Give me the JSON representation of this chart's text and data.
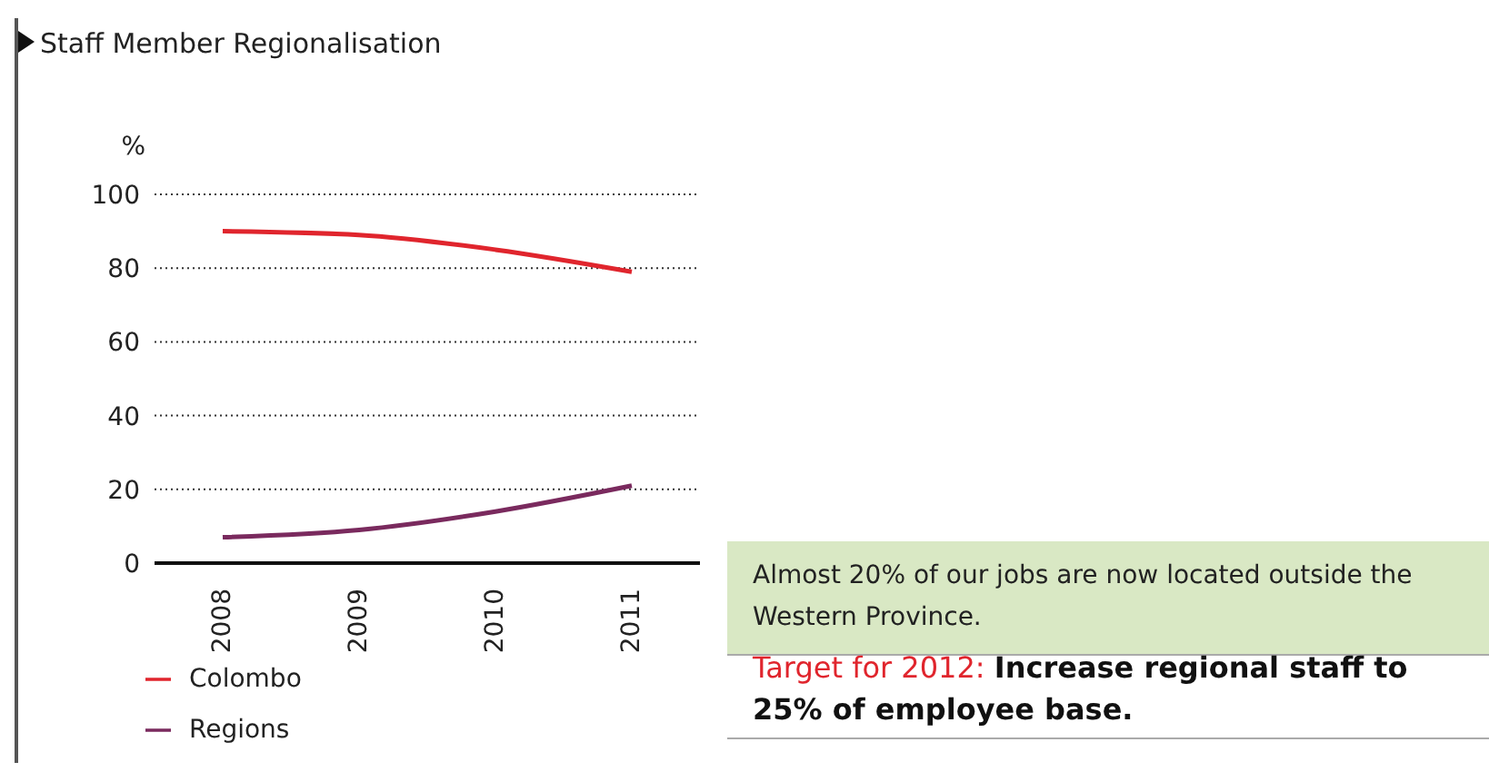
{
  "chart_data": {
    "type": "line",
    "title": "Staff Member Regionalisation",
    "ylabel": "%",
    "categories": [
      "2008",
      "2009",
      "2010",
      "2011"
    ],
    "series": [
      {
        "name": "Colombo",
        "color": "#e0252d",
        "values": [
          90,
          89,
          85,
          79
        ]
      },
      {
        "name": "Regions",
        "color": "#7a2a5e",
        "values": [
          7,
          9,
          14,
          21
        ]
      }
    ],
    "ylim": [
      0,
      100
    ],
    "yticks": [
      0,
      20,
      40,
      60,
      80,
      100
    ],
    "grid": "y",
    "legend": "bottom left",
    "marker": "none",
    "line_style": "solid",
    "annotations": [
      "Almost 20% of our jobs are now located outside the Western Province.",
      "Target for 2012:",
      "Increase regional staff to 25% of employee base."
    ]
  }
}
